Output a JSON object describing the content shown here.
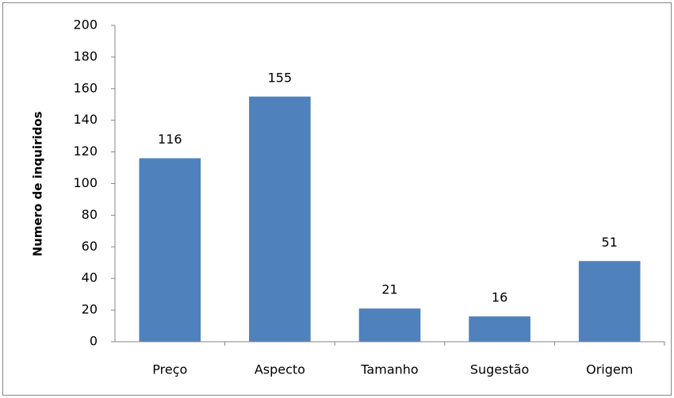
{
  "chart_data": {
    "type": "bar",
    "ylabel": "Numero de inquiridos",
    "categories": [
      "Preço",
      "Aspecto",
      "Tamanho",
      "Sugestão",
      "Origem"
    ],
    "values": [
      116,
      155,
      21,
      16,
      51
    ],
    "color": "#4f81bd",
    "ylim": [
      0,
      200
    ],
    "yticks": [
      0,
      20,
      40,
      60,
      80,
      100,
      120,
      140,
      160,
      180,
      200
    ],
    "grid": false,
    "data_labels": true
  }
}
